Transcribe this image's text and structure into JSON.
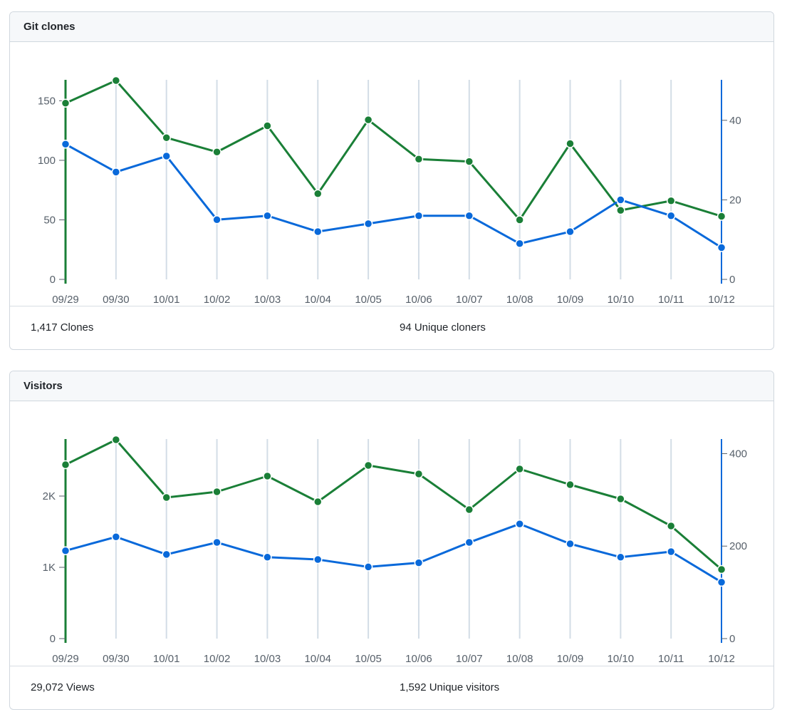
{
  "chart_data": [
    {
      "type": "line",
      "title": "Git clones",
      "categories": [
        "09/29",
        "09/30",
        "10/01",
        "10/02",
        "10/03",
        "10/04",
        "10/05",
        "10/06",
        "10/07",
        "10/08",
        "10/09",
        "10/10",
        "10/11",
        "10/12"
      ],
      "series": [
        {
          "name": "Clones",
          "axis": "left",
          "color": "#1a7f37",
          "values": [
            148,
            167,
            119,
            107,
            129,
            72,
            134,
            101,
            99,
            50,
            114,
            58,
            66,
            53
          ]
        },
        {
          "name": "Unique cloners",
          "axis": "right",
          "color": "#0969da",
          "values": [
            34,
            27,
            31,
            15,
            16,
            12,
            14,
            16,
            16,
            9,
            12,
            20,
            16,
            8
          ]
        }
      ],
      "left_axis": {
        "range": [
          0,
          167
        ],
        "ticks": [
          0,
          50,
          100,
          150
        ],
        "tick_labels": [
          "0",
          "50",
          "100",
          "150"
        ]
      },
      "right_axis": {
        "range": [
          0,
          50
        ],
        "ticks": [
          0,
          20,
          40
        ],
        "tick_labels": [
          "0",
          "20",
          "40"
        ]
      },
      "grid": "vertical",
      "summary": {
        "total": "1,417 Clones",
        "unique": "94 Unique cloners"
      }
    },
    {
      "type": "line",
      "title": "Visitors",
      "categories": [
        "09/29",
        "09/30",
        "10/01",
        "10/02",
        "10/03",
        "10/04",
        "10/05",
        "10/06",
        "10/07",
        "10/08",
        "10/09",
        "10/10",
        "10/11",
        "10/12"
      ],
      "series": [
        {
          "name": "Views",
          "axis": "left",
          "color": "#1a7f37",
          "values": [
            2440,
            2790,
            1980,
            2060,
            2280,
            1920,
            2430,
            2310,
            1810,
            2380,
            2160,
            1960,
            1580,
            970
          ]
        },
        {
          "name": "Unique visitors",
          "axis": "right",
          "color": "#0969da",
          "values": [
            190,
            220,
            182,
            208,
            176,
            171,
            155,
            164,
            208,
            248,
            205,
            176,
            188,
            122
          ]
        }
      ],
      "left_axis": {
        "range": [
          0,
          2790
        ],
        "ticks": [
          0,
          1000,
          2000
        ],
        "tick_labels": [
          "0",
          "1K",
          "2K"
        ]
      },
      "right_axis": {
        "range": [
          0,
          430
        ],
        "ticks": [
          0,
          200,
          400
        ],
        "tick_labels": [
          "0",
          "200",
          "400"
        ]
      },
      "grid": "vertical",
      "summary": {
        "total": "29,072 Views",
        "unique": "1,592 Unique visitors"
      }
    }
  ]
}
